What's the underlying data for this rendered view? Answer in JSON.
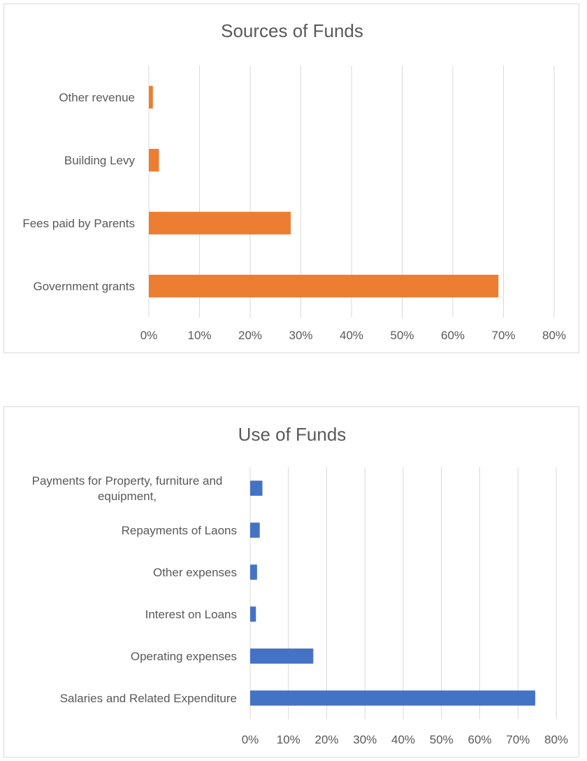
{
  "chart_data": [
    {
      "type": "bar",
      "orientation": "horizontal",
      "title": "Sources of Funds",
      "categories": [
        "Government grants",
        "Fees paid by Parents",
        "Building Levy",
        "Other revenue"
      ],
      "values": [
        69,
        28,
        2,
        0.8
      ],
      "unit": "%",
      "xlim": [
        0,
        80
      ],
      "xticks": [
        "0%",
        "10%",
        "20%",
        "30%",
        "40%",
        "50%",
        "60%",
        "70%",
        "80%"
      ],
      "color": "#ED7D31",
      "grid": true,
      "xlabel": "",
      "ylabel": ""
    },
    {
      "type": "bar",
      "orientation": "horizontal",
      "title": "Use of Funds",
      "categories": [
        "Salaries and Related Expenditure",
        "Operating expenses",
        "Interest on Loans",
        "Other expenses",
        "Repayments of Laons",
        "Payments for Property, furniture and equipment,"
      ],
      "category_lines": [
        [
          "Salaries and Related Expenditure"
        ],
        [
          "Operating expenses"
        ],
        [
          "Interest on Loans"
        ],
        [
          "Other expenses"
        ],
        [
          "Repayments of Laons"
        ],
        [
          "Payments for Property, furniture and",
          "equipment,"
        ]
      ],
      "values": [
        74.5,
        16.5,
        1.5,
        1.8,
        2.5,
        3.2
      ],
      "unit": "%",
      "xlim": [
        0,
        80
      ],
      "xticks": [
        "0%",
        "10%",
        "20%",
        "30%",
        "40%",
        "50%",
        "60%",
        "70%",
        "80%"
      ],
      "color": "#4472C4",
      "grid": true,
      "xlabel": "",
      "ylabel": ""
    }
  ]
}
